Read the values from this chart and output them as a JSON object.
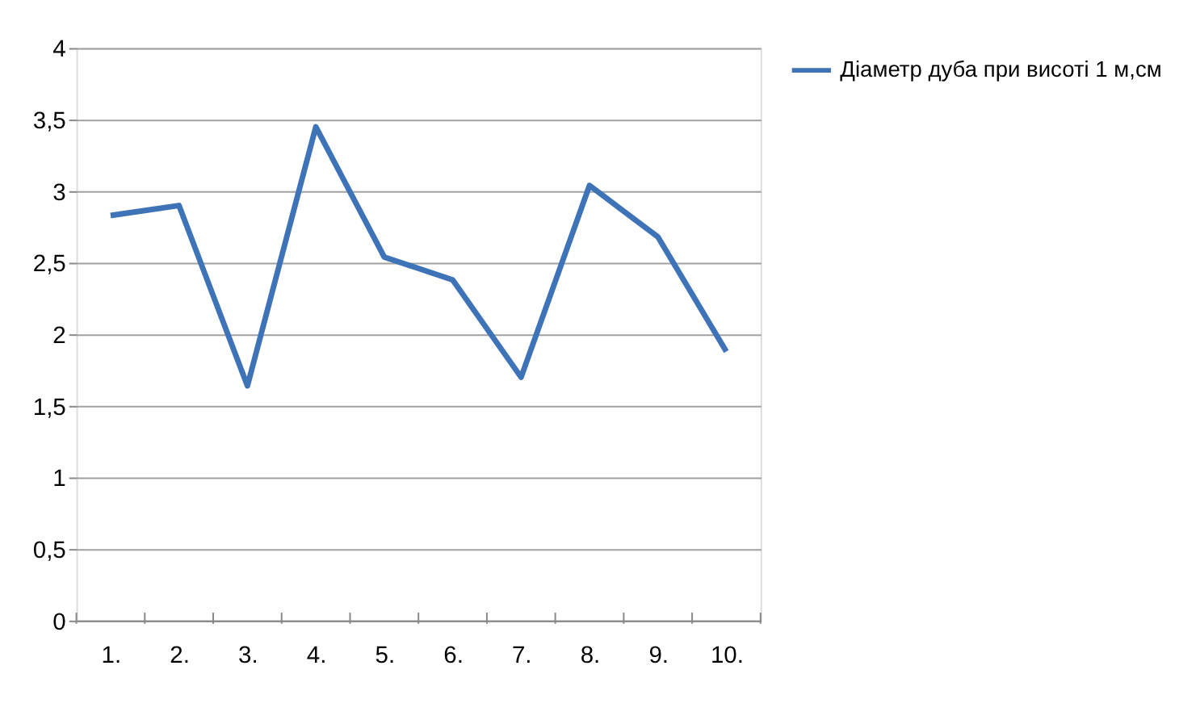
{
  "chart_data": {
    "type": "line",
    "categories": [
      "1.",
      "2.",
      "3.",
      "4.",
      "5.",
      "6.",
      "7.",
      "8.",
      "9.",
      "10."
    ],
    "series": [
      {
        "name": "Діаметр дуба при висоті 1 м,см",
        "color": "#3e73b8",
        "values": [
          2.83,
          2.9,
          1.64,
          3.45,
          2.54,
          2.38,
          1.7,
          3.04,
          2.68,
          1.88
        ]
      }
    ],
    "ylim": [
      0,
      4
    ],
    "yticks": [
      {
        "value": 0,
        "label": "0"
      },
      {
        "value": 0.5,
        "label": "0,5"
      },
      {
        "value": 1,
        "label": "1"
      },
      {
        "value": 1.5,
        "label": "1,5"
      },
      {
        "value": 2,
        "label": "2"
      },
      {
        "value": 2.5,
        "label": "2,5"
      },
      {
        "value": 3,
        "label": "3"
      },
      {
        "value": 3.5,
        "label": "3,5"
      },
      {
        "value": 4,
        "label": "4"
      }
    ],
    "grid": "y",
    "legend": "right",
    "marker": "none",
    "line_style": "solid"
  }
}
